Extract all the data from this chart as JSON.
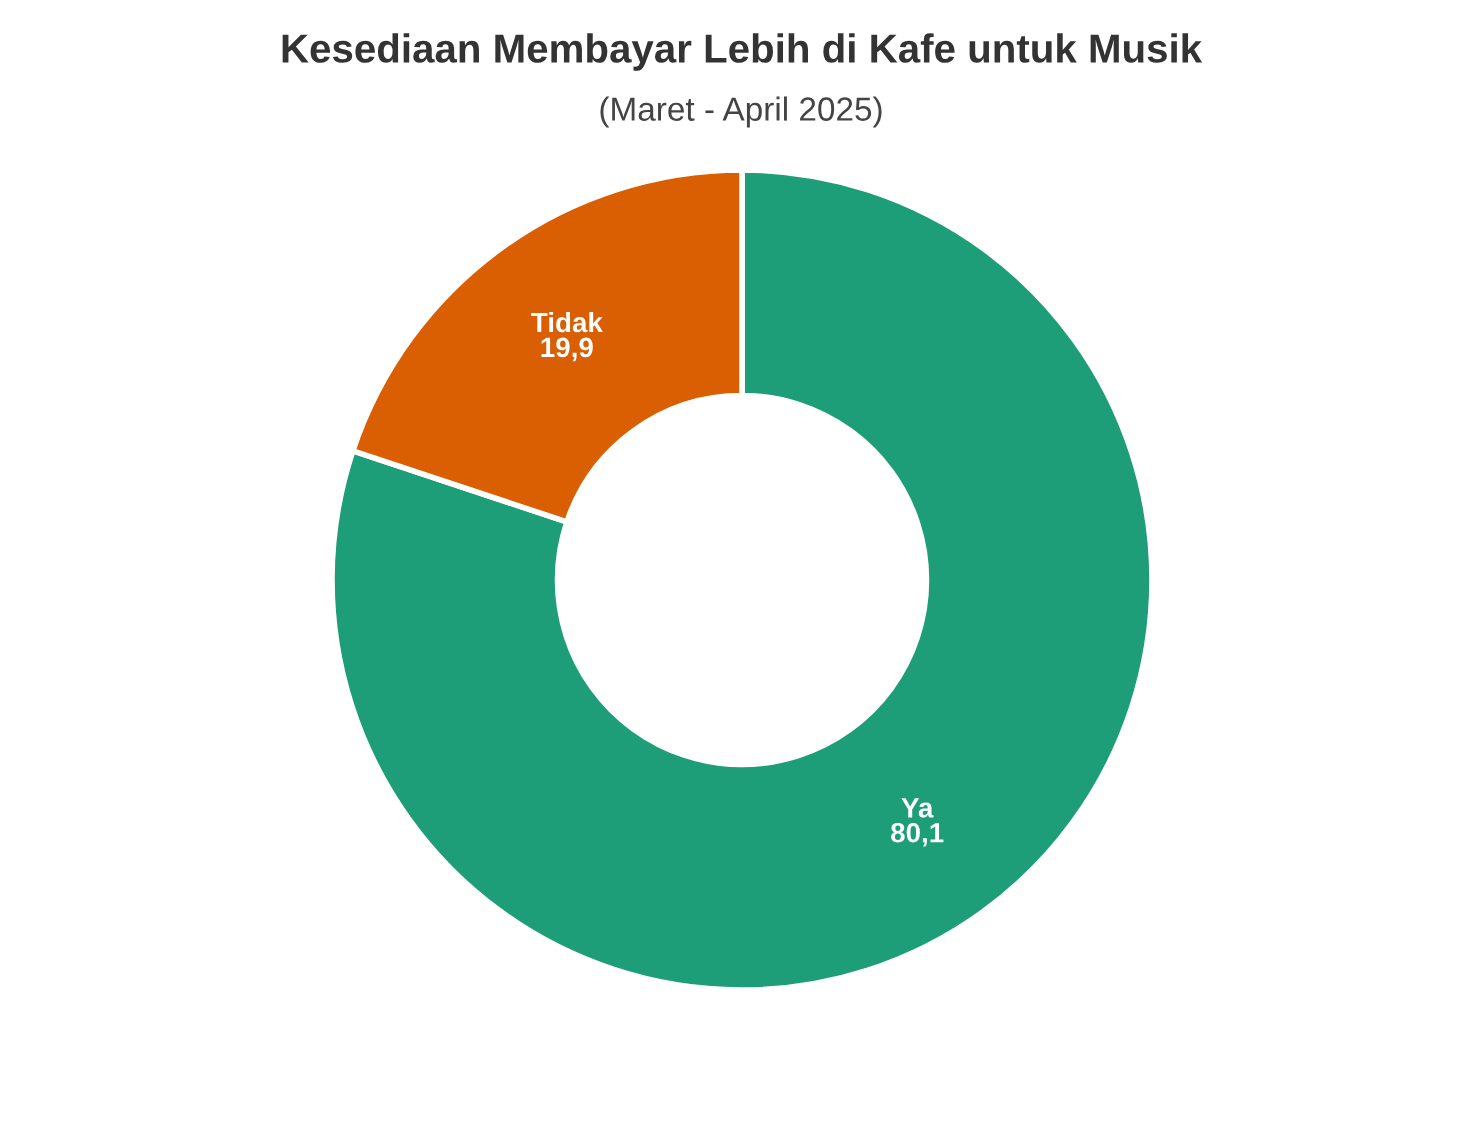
{
  "chart_data": {
    "type": "donut",
    "title": "Kesediaan Membayar Lebih di Kafe untuk Musik",
    "subtitle": "(Maret - April 2025)",
    "categories": [
      "Ya",
      "Tidak"
    ],
    "values": [
      80.1,
      19.9
    ],
    "colors": [
      "#1d9e78",
      "#d95f02"
    ],
    "value_labels": [
      "80,1",
      "19,9"
    ],
    "legend": false
  }
}
